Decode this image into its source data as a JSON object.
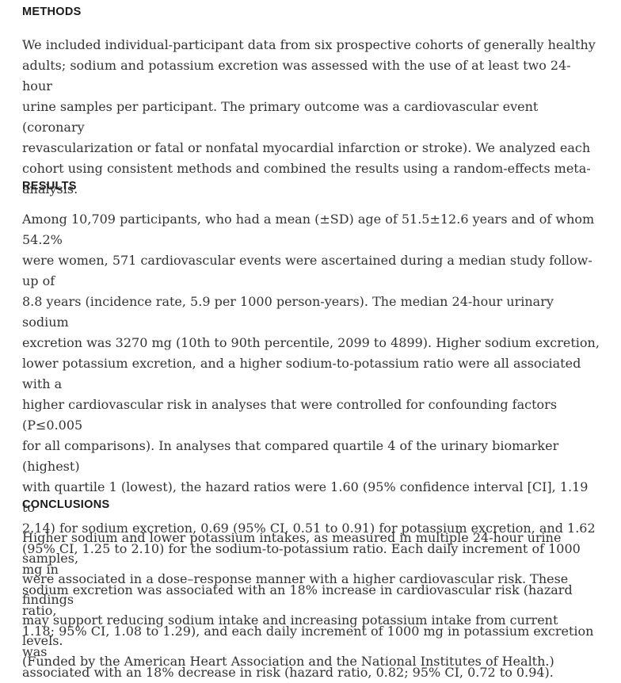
{
  "sections": {
    "methods": {
      "heading": "METHODS",
      "text": "We included individual-participant data from six prospective cohorts of generally healthy\nadults; sodium and potassium excretion was assessed with the use of at least two 24-hour\nurine samples per participant. The primary outcome was a cardiovascular event (coronary\nrevascularization or fatal or nonfatal myocardial infarction or stroke). We analyzed each\ncohort using consistent methods and combined the results using a random-effects meta-\nanalysis."
    },
    "results": {
      "heading": "RESULTS",
      "text": "Among 10,709 participants, who had a mean (±SD) age of 51.5±12.6 years and of whom 54.2%\nwere women, 571 cardiovascular events were ascertained during a median study follow-up of\n8.8 years (incidence rate, 5.9 per 1000 person-years). The median 24-hour urinary sodium\nexcretion was 3270 mg (10th to 90th percentile, 2099 to 4899). Higher sodium excretion,\nlower potassium excretion, and a higher sodium-to-potassium ratio were all associated with a\nhigher cardiovascular risk in analyses that were controlled for confounding factors (P≤0.005\nfor all comparisons). In analyses that compared quartile 4 of the urinary biomarker (highest)\nwith quartile 1 (lowest), the hazard ratios were 1.60 (95% confidence interval [CI], 1.19 to\n2.14) for sodium excretion, 0.69 (95% CI, 0.51 to 0.91) for potassium excretion, and 1.62\n(95% CI, 1.25 to 2.10) for the sodium-to-potassium ratio. Each daily increment of 1000 mg in\nsodium excretion was associated with an 18% increase in cardiovascular risk (hazard ratio,\n1.18; 95% CI, 1.08 to 1.29), and each daily increment of 1000 mg in potassium excretion was\nassociated with an 18% decrease in risk (hazard ratio, 0.82; 95% CI, 0.72 to 0.94)."
    },
    "conclusions": {
      "heading": "CONCLUSIONS",
      "text": "Higher sodium and lower potassium intakes, as measured in multiple 24-hour urine samples,\nwere associated in a dose–response manner with a higher cardiovascular risk. These findings\nmay support reducing sodium intake and increasing potassium intake from current levels.\n(Funded by the American Heart Association and the National Institutes of Health.)"
    }
  }
}
